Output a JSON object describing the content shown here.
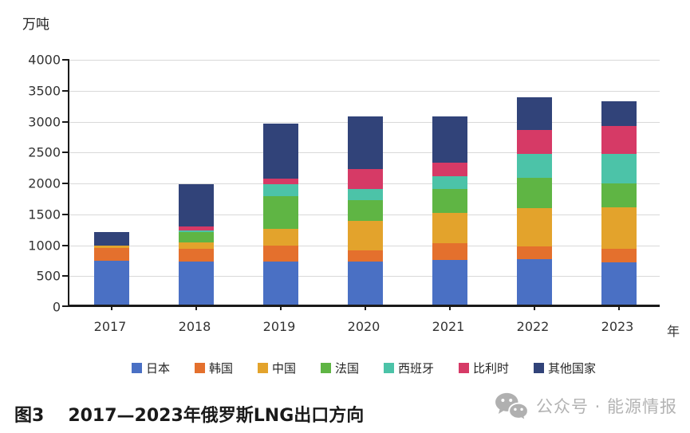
{
  "unit_label": "万吨",
  "axis_suffix": "年",
  "caption": {
    "label": "图3",
    "title": "2017—2023年俄罗斯LNG出口方向"
  },
  "watermark": {
    "icon": "wechat-icon",
    "text": "公众号 · 能源情报"
  },
  "colors": {
    "axis": "#1a1a1a",
    "gridline": "#d9d9d9",
    "watermark_gray": "#b3b3b3"
  },
  "chart_data": {
    "type": "bar",
    "stacked": true,
    "title": "",
    "xlabel": "年",
    "ylabel": "万吨",
    "ylim": [
      0,
      4000
    ],
    "ytick_interval": 500,
    "grid": true,
    "legend_position": "bottom",
    "categories": [
      "2017",
      "2018",
      "2019",
      "2020",
      "2021",
      "2022",
      "2023"
    ],
    "series": [
      {
        "key": "japan",
        "name": "日本",
        "color": "#4A70C4",
        "values": [
          710,
          695,
          700,
          695,
          725,
          740,
          680
        ]
      },
      {
        "key": "korea",
        "name": "韩国",
        "color": "#E4702D",
        "values": [
          210,
          210,
          250,
          185,
          275,
          200,
          220
        ]
      },
      {
        "key": "china",
        "name": "中国",
        "color": "#E3A32C",
        "values": [
          40,
          100,
          280,
          480,
          485,
          620,
          680
        ]
      },
      {
        "key": "france",
        "name": "法国",
        "color": "#5FB544",
        "values": [
          0,
          170,
          520,
          330,
          390,
          495,
          380
        ]
      },
      {
        "key": "spain",
        "name": "西班牙",
        "color": "#4CC3A8",
        "values": [
          0,
          25,
          195,
          185,
          205,
          390,
          480
        ]
      },
      {
        "key": "belgium",
        "name": "比利时",
        "color": "#D63A66",
        "values": [
          0,
          65,
          95,
          315,
          215,
          385,
          445
        ]
      },
      {
        "key": "others",
        "name": "其他国家",
        "color": "#314379",
        "values": [
          220,
          685,
          895,
          860,
          755,
          520,
          405
        ]
      }
    ],
    "totals": [
      1180,
      1950,
      2935,
      3050,
      3050,
      3350,
      3290
    ]
  }
}
